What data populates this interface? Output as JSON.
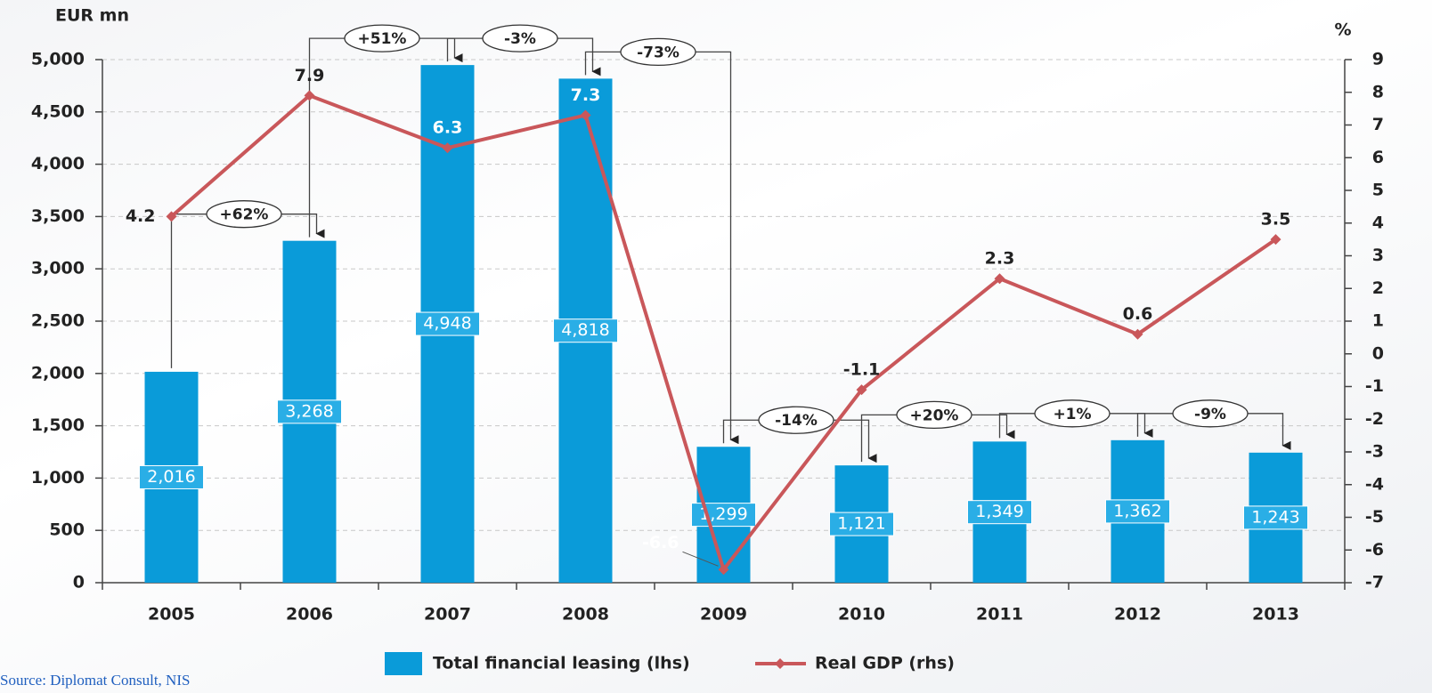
{
  "chart_data": {
    "type": "bar_line",
    "y_label": "EUR mn",
    "y2_label": "%",
    "categories": [
      "2005",
      "2006",
      "2007",
      "2008",
      "2009",
      "2010",
      "2011",
      "2012",
      "2013"
    ],
    "series": [
      {
        "name": "Total financial leasing (lhs)",
        "color": "#0a9bd9",
        "type": "bar",
        "values": [
          2016,
          3268,
          4948,
          4818,
          1299,
          1121,
          1349,
          1362,
          1243
        ],
        "value_labels": [
          "2,016",
          "3,268",
          "4,948",
          "4,818",
          "1,299",
          "1,121",
          "1,349",
          "1,362",
          "1,243"
        ]
      },
      {
        "name": "Real GDP (rhs)",
        "color": "#c9575a",
        "type": "line",
        "axis": "y2",
        "values": [
          4.2,
          7.9,
          6.3,
          7.3,
          -6.6,
          -1.1,
          2.3,
          0.6,
          3.5
        ]
      }
    ],
    "annotations": [
      "+62%",
      "+51%",
      "-3%",
      "-73%",
      "-14%",
      "+20%",
      "+1%",
      "-9%"
    ],
    "ylim": [
      0,
      5000
    ],
    "yticks": [
      0,
      500,
      {
        "value": 1000,
        "label": "1,000"
      },
      {
        "value": 1500,
        "label": "1,500"
      },
      {
        "value": 2000,
        "label": "2,000"
      },
      {
        "value": 2500,
        "label": "2,500"
      },
      {
        "value": 3000,
        "label": "3,000"
      },
      {
        "value": 3500,
        "label": "3,500"
      },
      {
        "value": 4000,
        "label": "4,000"
      },
      {
        "value": 4500,
        "label": "4,500"
      },
      {
        "value": 5000,
        "label": "5,000"
      }
    ],
    "y2lim": [
      -7,
      9
    ],
    "y2ticks": [
      -7,
      -6,
      -5,
      -4,
      -3,
      -2,
      -1,
      0,
      1,
      2,
      3,
      4,
      5,
      6,
      7,
      8,
      9
    ],
    "grid": true,
    "legend": "bottom",
    "source": "Source: Diplomat Consult, NIS"
  }
}
